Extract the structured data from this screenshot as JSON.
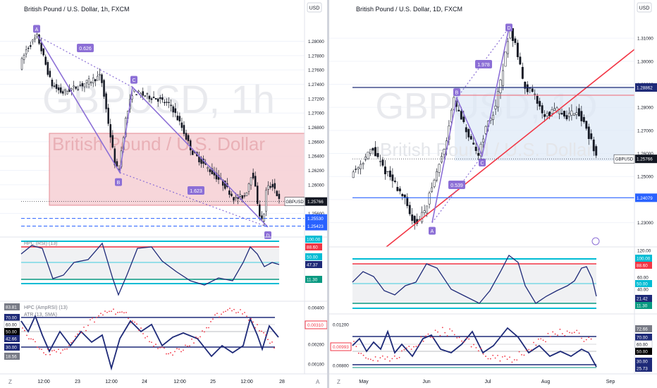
{
  "chart_data": [
    {
      "type": "candlestick",
      "title": "British Pound / U.S. Dollar, 1h, FXCM",
      "watermark_symbol": "GBPUSD, 1h",
      "watermark_name": "British Pound / U.S. Dollar",
      "currency_label": "USD",
      "x_ticks": [
        "12:00",
        "23",
        "12:00",
        "24",
        "12:00",
        "25",
        "12:00",
        "28"
      ],
      "y_ticks": [
        "1.28000",
        "1.27800",
        "1.27600",
        "1.27400",
        "1.27200",
        "1.27000",
        "1.26800",
        "1.26600",
        "1.26400",
        "1.26200",
        "1.26000",
        "1.25800",
        "1.25600"
      ],
      "ylim": [
        1.2533,
        1.283
      ],
      "last_price": {
        "symbol": "GBPUSD",
        "value": "1.25766",
        "color": "#000000"
      },
      "levels": [
        {
          "value": "1.25530",
          "color": "#2962ff"
        },
        {
          "value": "1.25423",
          "color": "#2962ff"
        }
      ],
      "pattern_points": [
        {
          "label": "A",
          "price": 1.2807
        },
        {
          "label": "B",
          "price": 1.2617
        },
        {
          "label": "C",
          "price": 1.2736
        },
        {
          "label": "D",
          "price": 1.2541
        }
      ],
      "ratios": [
        "0.626",
        "1.623"
      ],
      "zone": {
        "top": 1.2657,
        "bottom": 1.2558,
        "color": "#f28b92"
      },
      "indicator1": {
        "name": "HPC (RSI) (13)",
        "badges": [
          {
            "text": "100.00",
            "bg": "#00bcd4"
          },
          {
            "text": "88.60",
            "bg": "#f23645"
          },
          {
            "text": "50.00",
            "bg": "#00bcd4"
          },
          {
            "text": "47.37",
            "bg": "#1e2a78"
          },
          {
            "text": "11.30",
            "bg": "#089981"
          }
        ]
      },
      "indicator2": {
        "name": "HPC (AmpRSI) (13)",
        "sub": "ATR (13, SMA)",
        "left_badges": [
          {
            "text": "83.81",
            "bg": "#787b86"
          },
          {
            "text": "70.00",
            "bg": "#1e2a78"
          },
          {
            "text": "60.00",
            "bg": "#ffffff"
          },
          {
            "text": "50.00",
            "bg": "#000000"
          },
          {
            "text": "42.66",
            "bg": "#1e2a78"
          },
          {
            "text": "30.00",
            "bg": "#1e2a78"
          },
          {
            "text": "18.56",
            "bg": "#787b86"
          }
        ],
        "y_ticks": [
          "0.00400",
          "0.00200",
          "0.00100"
        ],
        "value": {
          "text": "0.00310",
          "color": "#f23645"
        }
      }
    },
    {
      "type": "candlestick",
      "title": "British Pound / U.S. Dollar, 1D, FXCM",
      "watermark_symbol": "GBPUSD, 1D",
      "watermark_name": "British Pound / U.S. Dollar",
      "currency_label": "USD",
      "x_ticks": [
        "May",
        "Jun",
        "Jul",
        "Aug",
        "Sep"
      ],
      "y_ticks": [
        "1.31000",
        "1.30000",
        "1.29000",
        "1.28000",
        "1.27000",
        "1.26000",
        "1.25000",
        "1.24000",
        "1.23000"
      ],
      "ylim": [
        1.221,
        1.318
      ],
      "last_price": {
        "symbol": "GBPUSD",
        "value": "1.25766",
        "color": "#000000"
      },
      "levels": [
        {
          "value": "1.28862",
          "color": "#1e2a78"
        },
        {
          "value": "1.24079",
          "color": "#2962ff"
        }
      ],
      "pattern_points": [
        {
          "label": "A",
          "price": 1.23
        },
        {
          "label": "B",
          "price": 1.284
        },
        {
          "label": "C",
          "price": 1.259
        },
        {
          "label": "D",
          "price": 1.3145
        }
      ],
      "ratios": [
        "1.978",
        "0.539"
      ],
      "indicator1": {
        "badges": [
          {
            "text": "100.00",
            "bg": "#00bcd4"
          },
          {
            "text": "88.60",
            "bg": "#f23645"
          },
          {
            "text": "50.00",
            "bg": "#00bcd4"
          },
          {
            "text": "21.42",
            "bg": "#1e2a78"
          },
          {
            "text": "11.30",
            "bg": "#089981"
          }
        ],
        "y_ticks": [
          "120.00",
          "60.00",
          "40.00"
        ]
      },
      "indicator2": {
        "left_badges": [
          {
            "text": "0.00993",
            "bg": "#f23645"
          }
        ],
        "y_ticks": [
          "0.01200",
          "0.00800"
        ],
        "right_badges": [
          {
            "text": "72.66",
            "bg": "#787b86"
          },
          {
            "text": "70.00",
            "bg": "#1e2a78"
          },
          {
            "text": "60.00",
            "bg": "#ffffff"
          },
          {
            "text": "50.00",
            "bg": "#000000"
          },
          {
            "text": "30.00",
            "bg": "#1e2a78"
          },
          {
            "text": "25.73",
            "bg": "#1e2a78"
          }
        ]
      }
    }
  ],
  "bottom": {
    "left_z": "Z",
    "right_z": "Z",
    "auto_a": "A"
  }
}
